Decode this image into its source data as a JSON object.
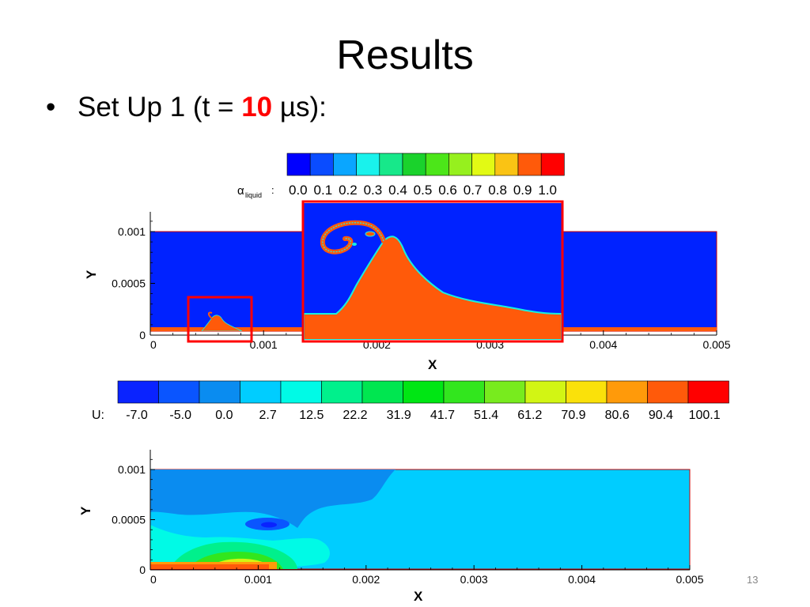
{
  "slide": {
    "title": "Results",
    "bullet": {
      "marker": "•",
      "prefix": "Set Up 1 (t = ",
      "value": "10",
      "suffix": " µs):"
    },
    "page_number": "13"
  },
  "alpha_legend": {
    "symbol": "α",
    "subscript": "liquid",
    "colon": ":",
    "levels": [
      "0.0",
      "0.1",
      "0.2",
      "0.3",
      "0.4",
      "0.5",
      "0.6",
      "0.7",
      "0.8",
      "0.9",
      "1.0"
    ],
    "colors": [
      "#0000ff",
      "#0a4cff",
      "#0aa6ff",
      "#19f2ec",
      "#17e88a",
      "#1ad22c",
      "#4ce619",
      "#96f01e",
      "#e2fa14",
      "#fac314",
      "#ff5a0a",
      "#ff0000"
    ]
  },
  "u_legend": {
    "label": "U:",
    "levels": [
      "-7.0",
      "-5.0",
      "0.0",
      "2.7",
      "12.5",
      "22.2",
      "31.9",
      "41.7",
      "51.4",
      "61.2",
      "70.9",
      "80.6",
      "90.4",
      "100.1"
    ],
    "colors": [
      "#0a23ff",
      "#0a55ff",
      "#0a8cf0",
      "#00cdff",
      "#00fae6",
      "#00f08c",
      "#00e650",
      "#00e614",
      "#32e61e",
      "#78eb1e",
      "#d2f514",
      "#fae10a",
      "#ff9a0a",
      "#ff5a0a",
      "#ff0000"
    ]
  },
  "plot1": {
    "ylabel": "Y",
    "xlabel": "X",
    "xticks": [
      "0",
      "0.001",
      "0.002",
      "0.003",
      "0.004",
      "0.005"
    ],
    "yticks": [
      "0",
      "0.0005",
      "0.001"
    ]
  },
  "plot2": {
    "ylabel": "Y",
    "xlabel": "X",
    "xticks": [
      "0",
      "0.001",
      "0.002",
      "0.003",
      "0.004",
      "0.005"
    ],
    "yticks": [
      "0",
      "0.0005",
      "0.001"
    ]
  },
  "colors": {
    "background_blue": "#0022ff",
    "liquid_orange": "#ff5a0a",
    "highlight_red": "#ff0000",
    "velocity_bg": "#00cdff"
  }
}
